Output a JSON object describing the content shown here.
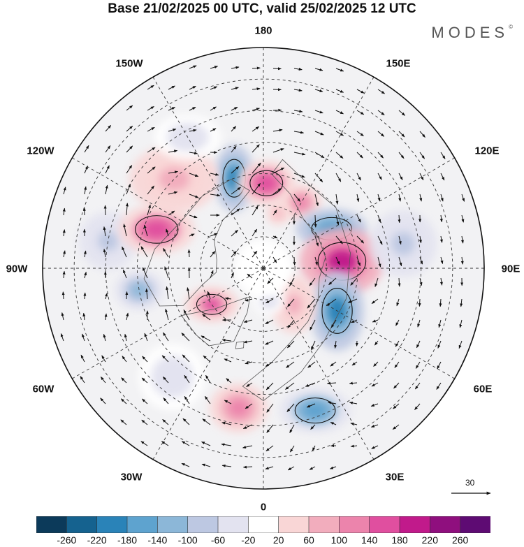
{
  "title": "Base 21/02/2025 00 UTC, valid 25/02/2025 12 UTC",
  "brand": {
    "name": "MODES",
    "mark": "©"
  },
  "longitude_labels": {
    "top": "180",
    "bottom": "0",
    "left": "90W",
    "right": "90E",
    "nw_upper": "150W",
    "nw_lower": "120W",
    "ne_upper": "150E",
    "ne_lower": "120E",
    "sw_upper": "60W",
    "sw_lower": "30W",
    "se_upper": "60E",
    "se_lower": "30E"
  },
  "vector_scale": {
    "label": "30"
  },
  "colorbar": {
    "ticks": [
      "-260",
      "-220",
      "-180",
      "-140",
      "-100",
      "-60",
      "-20",
      "20",
      "60",
      "100",
      "140",
      "180",
      "220",
      "260"
    ],
    "colors": [
      "#0c3a5a",
      "#15628f",
      "#2a83b8",
      "#5ea3cf",
      "#8cb7d8",
      "#bdc8e2",
      "#e3e3f0",
      "#ffffff",
      "#f9d6d6",
      "#f2adbd",
      "#ec84ac",
      "#e04f9f",
      "#c11a8b",
      "#8f0f7e",
      "#5e0b73"
    ]
  },
  "anomalies": [
    {
      "lon": -162,
      "colat": 30,
      "value": -190,
      "sx": 18,
      "sy": 30
    },
    {
      "lon": 178,
      "colat": 27,
      "value": 150,
      "sx": 26,
      "sy": 20
    },
    {
      "lon": 150,
      "colat": 24,
      "value": 120,
      "sx": 18,
      "sy": 16
    },
    {
      "lon": 165,
      "colat": 18,
      "value": 60,
      "sx": 10,
      "sy": 10
    },
    {
      "lon": 120,
      "colat": 25,
      "value": -180,
      "sx": 32,
      "sy": 18
    },
    {
      "lon": 95,
      "colat": 25,
      "value": 180,
      "sx": 38,
      "sy": 30
    },
    {
      "lon": 60,
      "colat": 27,
      "value": -200,
      "sx": 24,
      "sy": 36
    },
    {
      "lon": 20,
      "colat": 48,
      "value": -150,
      "sx": 32,
      "sy": 20
    },
    {
      "lon": -10,
      "colat": 45,
      "value": 110,
      "sx": 26,
      "sy": 22
    },
    {
      "lon": -55,
      "colat": 20,
      "value": 140,
      "sx": 24,
      "sy": 16
    },
    {
      "lon": -80,
      "colat": 40,
      "value": -110,
      "sx": 22,
      "sy": 18
    },
    {
      "lon": -100,
      "colat": 50,
      "value": -80,
      "sx": 26,
      "sy": 26
    },
    {
      "lon": -110,
      "colat": 36,
      "value": 160,
      "sx": 34,
      "sy": 22
    },
    {
      "lon": -135,
      "colat": 40,
      "value": 60,
      "sx": 40,
      "sy": 30
    },
    {
      "lon": 100,
      "colat": 45,
      "value": -70,
      "sx": 30,
      "sy": 30
    },
    {
      "lon": -40,
      "colat": 45,
      "value": -40,
      "sx": 30,
      "sy": 30
    },
    {
      "lon": 40,
      "colat": 15,
      "value": 80,
      "sx": 20,
      "sy": 26
    },
    {
      "lon": -150,
      "colat": 48,
      "value": -40,
      "sx": 30,
      "sy": 20
    },
    {
      "lon": 10,
      "colat": 10,
      "value": -40,
      "sx": 14,
      "sy": 14
    }
  ]
}
